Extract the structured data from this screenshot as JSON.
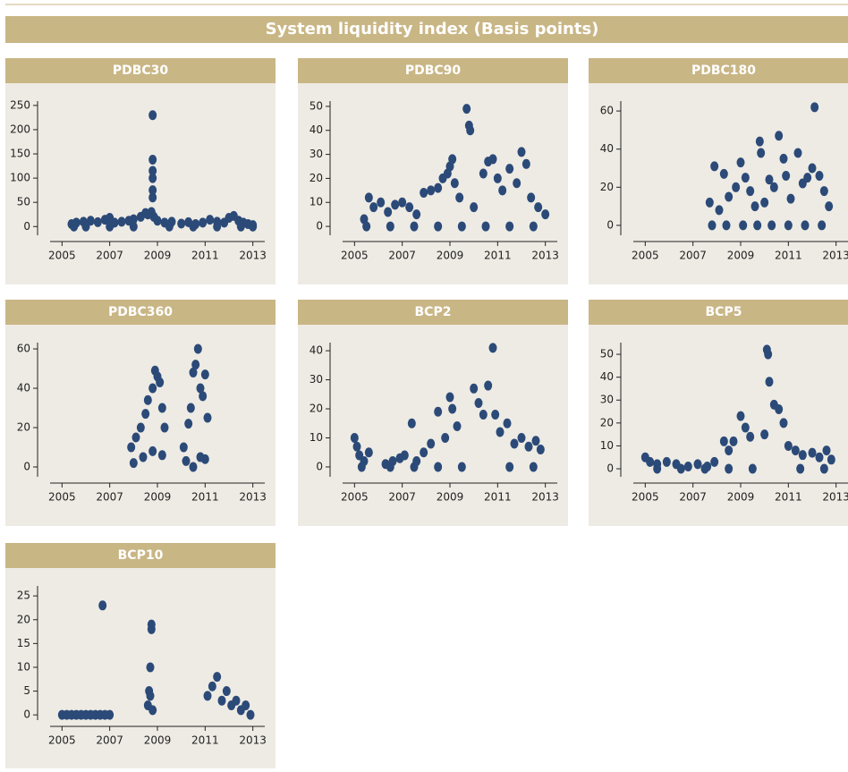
{
  "title": "System liquidity index (Basis points)",
  "chart_data": [
    {
      "type": "scatter",
      "title": "PDBC30",
      "color": "#2b4a78",
      "x": [
        2005.4,
        2005.6,
        2005.9,
        2006.2,
        2006.5,
        2006.8,
        2007.0,
        2007.2,
        2007.5,
        2007.8,
        2008.0,
        2008.3,
        2008.5,
        2008.6,
        2008.75,
        2008.8,
        2008.8,
        2008.8,
        2008.8,
        2008.8,
        2008.8,
        2008.85,
        2009.0,
        2009.3,
        2009.6,
        2010.0,
        2010.3,
        2010.6,
        2010.9,
        2011.2,
        2011.5,
        2011.8,
        2012.0,
        2012.2,
        2012.4,
        2012.6,
        2012.8,
        2013.0,
        2005.5,
        2006.0,
        2007.0,
        2008.0,
        2009.5,
        2010.5,
        2011.5,
        2012.5,
        2013.0
      ],
      "values": [
        5,
        8,
        10,
        12,
        9,
        14,
        18,
        8,
        10,
        12,
        15,
        20,
        28,
        25,
        30,
        60,
        75,
        100,
        115,
        138,
        230,
        20,
        12,
        8,
        10,
        6,
        9,
        5,
        8,
        14,
        10,
        8,
        18,
        22,
        12,
        8,
        5,
        3,
        0,
        0,
        0,
        0,
        0,
        0,
        0,
        0,
        0
      ],
      "xlim": [
        2004.5,
        2013.5
      ],
      "ylim": [
        -18,
        259
      ],
      "xticks": [
        2005,
        2007,
        2009,
        2011,
        2013
      ],
      "yticks": [
        0,
        50,
        100,
        150,
        200,
        250
      ]
    },
    {
      "type": "scatter",
      "title": "PDBC90",
      "color": "#2b4a78",
      "x": [
        2005.4,
        2005.6,
        2005.8,
        2006.1,
        2006.4,
        2006.7,
        2007.0,
        2007.3,
        2007.6,
        2007.9,
        2008.2,
        2008.5,
        2008.7,
        2008.9,
        2009.0,
        2009.1,
        2009.2,
        2009.4,
        2009.7,
        2009.8,
        2009.85,
        2010.0,
        2010.4,
        2010.6,
        2010.8,
        2011.0,
        2011.2,
        2011.5,
        2011.8,
        2012.0,
        2012.2,
        2012.4,
        2012.7,
        2013.0,
        2005.5,
        2006.5,
        2007.5,
        2008.5,
        2009.5,
        2010.5,
        2011.5,
        2012.5
      ],
      "values": [
        3,
        12,
        8,
        10,
        6,
        9,
        10,
        8,
        5,
        14,
        15,
        16,
        20,
        22,
        25,
        28,
        18,
        12,
        49,
        42,
        40,
        8,
        22,
        27,
        28,
        20,
        15,
        24,
        18,
        31,
        26,
        12,
        8,
        5,
        0,
        0,
        0,
        0,
        0,
        0,
        0,
        0
      ],
      "xlim": [
        2004.5,
        2013.5
      ],
      "ylim": [
        -3.7,
        52.2
      ],
      "xticks": [
        2005,
        2007,
        2009,
        2011,
        2013
      ],
      "yticks": [
        0,
        10,
        20,
        30,
        40,
        50
      ]
    },
    {
      "type": "scatter",
      "title": "PDBC180",
      "color": "#2b4a78",
      "x": [
        2007.7,
        2007.9,
        2008.1,
        2008.3,
        2008.5,
        2008.8,
        2009.0,
        2009.2,
        2009.4,
        2009.6,
        2009.8,
        2009.85,
        2010.0,
        2010.2,
        2010.4,
        2010.6,
        2010.8,
        2010.9,
        2011.1,
        2011.4,
        2011.6,
        2011.8,
        2012.0,
        2012.1,
        2012.3,
        2012.5,
        2012.7,
        2007.8,
        2008.4,
        2009.1,
        2009.7,
        2010.3,
        2011.0,
        2011.7,
        2012.4
      ],
      "values": [
        12,
        31,
        8,
        27,
        15,
        20,
        33,
        25,
        18,
        10,
        44,
        38,
        12,
        24,
        20,
        47,
        35,
        26,
        14,
        38,
        22,
        25,
        30,
        62,
        26,
        18,
        10,
        0,
        0,
        0,
        0,
        0,
        0,
        0,
        0
      ],
      "xlim": [
        2004.5,
        2013.5
      ],
      "ylim": [
        -5.2,
        65.2
      ],
      "xticks": [
        2005,
        2007,
        2009,
        2011,
        2013
      ],
      "yticks": [
        0,
        20,
        40,
        60
      ]
    },
    {
      "type": "scatter",
      "title": "PDBC360",
      "color": "#2b4a78",
      "x": [
        2007.9,
        2008.1,
        2008.3,
        2008.5,
        2008.6,
        2008.8,
        2008.9,
        2009.0,
        2009.1,
        2009.2,
        2009.3,
        2010.1,
        2010.3,
        2010.4,
        2010.5,
        2010.6,
        2010.7,
        2010.8,
        2010.9,
        2011.0,
        2011.1,
        2008.0,
        2008.4,
        2008.8,
        2009.2,
        2010.2,
        2010.5,
        2010.8,
        2011.0
      ],
      "values": [
        10,
        15,
        20,
        27,
        34,
        40,
        49,
        46,
        43,
        30,
        20,
        10,
        22,
        30,
        48,
        52,
        60,
        40,
        36,
        47,
        25,
        2,
        5,
        8,
        6,
        3,
        0,
        5,
        4
      ],
      "xlim": [
        2004.5,
        2013.5
      ],
      "ylim": [
        -5,
        63.2
      ],
      "xticks": [
        2005,
        2007,
        2009,
        2011,
        2013
      ],
      "yticks": [
        0,
        20,
        40,
        60
      ]
    },
    {
      "type": "scatter",
      "title": "BCP2",
      "color": "#2b4a78",
      "x": [
        2005.0,
        2005.1,
        2005.2,
        2005.4,
        2005.6,
        2006.3,
        2006.6,
        2006.9,
        2007.1,
        2007.4,
        2007.6,
        2007.9,
        2008.2,
        2008.5,
        2008.8,
        2009.0,
        2009.1,
        2009.3,
        2010.0,
        2010.2,
        2010.4,
        2010.6,
        2010.8,
        2010.9,
        2011.1,
        2011.4,
        2011.7,
        2012.0,
        2012.3,
        2012.6,
        2012.8,
        2005.3,
        2006.5,
        2007.5,
        2008.5,
        2009.5,
        2011.5,
        2012.5
      ],
      "values": [
        10,
        7,
        4,
        2,
        5,
        1,
        2,
        3,
        4,
        15,
        2,
        5,
        8,
        19,
        10,
        24,
        20,
        14,
        27,
        22,
        18,
        28,
        41,
        18,
        12,
        15,
        8,
        10,
        7,
        9,
        6,
        0,
        0,
        0,
        0,
        0,
        0,
        0
      ],
      "xlim": [
        2004.5,
        2013.5
      ],
      "ylim": [
        -3.4,
        42.8
      ],
      "xticks": [
        2005,
        2007,
        2009,
        2011,
        2013
      ],
      "yticks": [
        0,
        10,
        20,
        30,
        40
      ]
    },
    {
      "type": "scatter",
      "title": "BCP5",
      "color": "#2b4a78",
      "x": [
        2005.0,
        2005.2,
        2005.5,
        2005.9,
        2006.3,
        2006.8,
        2007.2,
        2007.6,
        2007.9,
        2008.3,
        2008.5,
        2008.7,
        2009.0,
        2009.2,
        2009.4,
        2010.0,
        2010.1,
        2010.15,
        2010.2,
        2010.4,
        2010.6,
        2010.8,
        2011.0,
        2011.3,
        2011.6,
        2012.0,
        2012.3,
        2012.6,
        2012.8,
        2005.5,
        2006.5,
        2007.5,
        2008.5,
        2009.5,
        2011.5,
        2012.5
      ],
      "values": [
        5,
        3,
        2,
        3,
        2,
        1,
        2,
        1,
        3,
        12,
        8,
        12,
        23,
        18,
        14,
        15,
        52,
        50,
        38,
        28,
        26,
        20,
        10,
        8,
        6,
        7,
        5,
        8,
        4,
        0,
        0,
        0,
        0,
        0,
        0,
        0
      ],
      "xlim": [
        2004.5,
        2013.5
      ],
      "ylim": [
        -3.5,
        55.1
      ],
      "xticks": [
        2005,
        2007,
        2009,
        2011,
        2013
      ],
      "yticks": [
        0,
        10,
        20,
        30,
        40,
        50
      ]
    },
    {
      "type": "scatter",
      "title": "BCP10",
      "color": "#2b4a78",
      "x": [
        2005.0,
        2005.2,
        2005.4,
        2005.6,
        2005.8,
        2006.0,
        2006.2,
        2006.4,
        2006.6,
        2006.7,
        2006.8,
        2007.0,
        2008.6,
        2008.65,
        2008.7,
        2008.7,
        2008.75,
        2008.75,
        2008.8,
        2011.1,
        2011.3,
        2011.5,
        2011.7,
        2011.9,
        2012.1,
        2012.3,
        2012.5,
        2012.7,
        2012.9
      ],
      "values": [
        0,
        0,
        0,
        0,
        0,
        0,
        0,
        0,
        0,
        23,
        0,
        0,
        2,
        5,
        10,
        4,
        19,
        18,
        1,
        4,
        6,
        8,
        3,
        5,
        2,
        3,
        1,
        2,
        0
      ],
      "xlim": [
        2004.5,
        2013.5
      ],
      "ylim": [
        -1.1,
        27.1
      ],
      "xticks": [
        2005,
        2007,
        2009,
        2011,
        2013
      ],
      "yticks": [
        0,
        5,
        10,
        15,
        20,
        25
      ]
    }
  ]
}
